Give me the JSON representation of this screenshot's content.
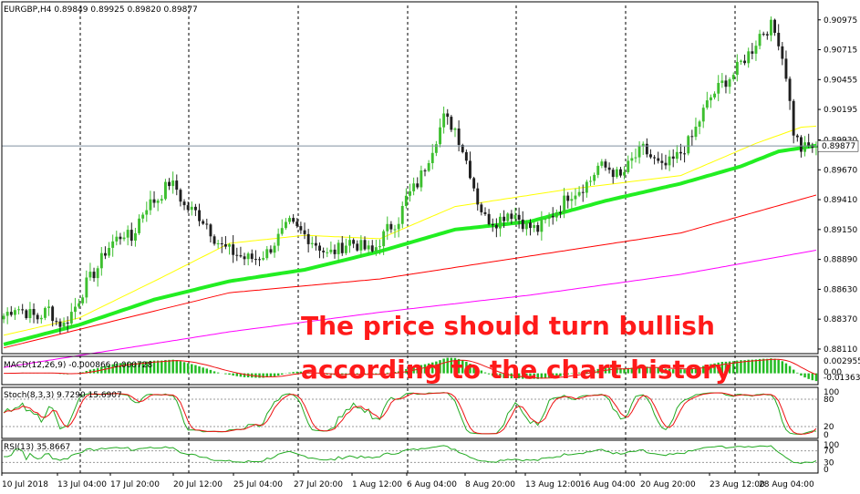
{
  "chart_data": {
    "type": "candlestick",
    "symbol_header": "EURGBP,H4  0.89849 0.89925 0.89820 0.89877",
    "last_price_label": "0.89877",
    "price_axis_ticks": [
      "0.90975",
      "0.90715",
      "0.90455",
      "0.90195",
      "0.89930",
      "0.89670",
      "0.89410",
      "0.89150",
      "0.88890",
      "0.88630",
      "0.88370",
      "0.88110"
    ],
    "price_range": [
      0.8807,
      0.911
    ],
    "last_price": 0.89877,
    "x_labels": [
      "10 Jul 2018",
      "13 Jul 04:00",
      "17 Jul 20:00",
      "20 Jul 12:00",
      "25 Jul 04:00",
      "27 Jul 20:00",
      "1 Aug 12:00",
      "6 Aug 04:00",
      "8 Aug 20:00",
      "13 Aug 12:00",
      "16 Aug 04:00",
      "20 Aug 20:00",
      "23 Aug 12:00",
      "28 Aug 04:00"
    ],
    "close_path": [
      [
        0,
        0.884
      ],
      [
        3,
        0.8848
      ],
      [
        6,
        0.8843
      ],
      [
        9,
        0.8838
      ],
      [
        12,
        0.8846
      ],
      [
        14,
        0.8835
      ],
      [
        16,
        0.8832
      ],
      [
        19,
        0.8848
      ],
      [
        22,
        0.8868
      ],
      [
        25,
        0.8882
      ],
      [
        27,
        0.8896
      ],
      [
        29,
        0.8904
      ],
      [
        32,
        0.8912
      ],
      [
        34,
        0.8906
      ],
      [
        36,
        0.8924
      ],
      [
        38,
        0.8936
      ],
      [
        41,
        0.8942
      ],
      [
        44,
        0.8956
      ],
      [
        46,
        0.895
      ],
      [
        48,
        0.8935
      ],
      [
        51,
        0.893
      ],
      [
        54,
        0.892
      ],
      [
        56,
        0.8908
      ],
      [
        58,
        0.89
      ],
      [
        61,
        0.8895
      ],
      [
        64,
        0.889
      ],
      [
        67,
        0.889
      ],
      [
        70,
        0.8895
      ],
      [
        73,
        0.8908
      ],
      [
        76,
        0.892
      ],
      [
        78,
        0.8915
      ],
      [
        81,
        0.8908
      ],
      [
        84,
        0.89
      ],
      [
        86,
        0.8893
      ],
      [
        89,
        0.8898
      ],
      [
        92,
        0.8905
      ],
      [
        95,
        0.89
      ],
      [
        98,
        0.8895
      ],
      [
        100,
        0.8905
      ],
      [
        102,
        0.8915
      ],
      [
        105,
        0.8924
      ],
      [
        107,
        0.8942
      ],
      [
        110,
        0.8955
      ],
      [
        112,
        0.897
      ],
      [
        115,
        0.8995
      ],
      [
        117,
        0.9012
      ],
      [
        120,
        0.9003
      ],
      [
        122,
        0.8985
      ],
      [
        124,
        0.8965
      ],
      [
        126,
        0.894
      ],
      [
        128,
        0.8925
      ],
      [
        131,
        0.8922
      ],
      [
        134,
        0.893
      ],
      [
        136,
        0.8928
      ],
      [
        139,
        0.8918
      ],
      [
        142,
        0.8915
      ],
      [
        145,
        0.8925
      ],
      [
        148,
        0.8935
      ],
      [
        150,
        0.8945
      ],
      [
        153,
        0.895
      ],
      [
        156,
        0.8958
      ],
      [
        158,
        0.897
      ],
      [
        161,
        0.8968
      ],
      [
        164,
        0.896
      ],
      [
        167,
        0.8975
      ],
      [
        170,
        0.8985
      ],
      [
        172,
        0.8978
      ],
      [
        175,
        0.8968
      ],
      [
        178,
        0.8975
      ],
      [
        180,
        0.8982
      ],
      [
        183,
        0.8995
      ],
      [
        186,
        0.9018
      ],
      [
        188,
        0.903
      ],
      [
        191,
        0.9042
      ],
      [
        194,
        0.905
      ],
      [
        196,
        0.906
      ],
      [
        199,
        0.9072
      ],
      [
        201,
        0.9085
      ],
      [
        204,
        0.9092
      ],
      [
        206,
        0.908
      ],
      [
        208,
        0.905
      ],
      [
        210,
        0.9
      ],
      [
        212,
        0.8985
      ],
      [
        214,
        0.8987
      ],
      [
        216,
        0.8988
      ]
    ],
    "n_bars": 217,
    "moving_averages": [
      {
        "name": "MA slow",
        "color": "#ff0000",
        "width": 1,
        "points": [
          [
            0,
            0.8812
          ],
          [
            60,
            0.886
          ],
          [
            100,
            0.8872
          ],
          [
            140,
            0.8892
          ],
          [
            180,
            0.8912
          ],
          [
            216,
            0.8945
          ]
        ]
      },
      {
        "name": "MA long",
        "color": "#ff00ff",
        "width": 1,
        "points": [
          [
            0,
            0.8795
          ],
          [
            60,
            0.8826
          ],
          [
            100,
            0.8843
          ],
          [
            140,
            0.8858
          ],
          [
            180,
            0.8876
          ],
          [
            216,
            0.8897
          ]
        ]
      },
      {
        "name": "MA fast",
        "color": "#ffff00",
        "width": 1,
        "points": [
          [
            0,
            0.8823
          ],
          [
            20,
            0.8838
          ],
          [
            40,
            0.887
          ],
          [
            60,
            0.8903
          ],
          [
            80,
            0.891
          ],
          [
            100,
            0.8907
          ],
          [
            120,
            0.8935
          ],
          [
            150,
            0.895
          ],
          [
            180,
            0.8962
          ],
          [
            200,
            0.899
          ],
          [
            212,
            0.9004
          ],
          [
            216,
            0.9005
          ]
        ]
      },
      {
        "name": "MA mid",
        "color": "#22ee22",
        "width": 4,
        "points": [
          [
            0,
            0.8815
          ],
          [
            20,
            0.8832
          ],
          [
            40,
            0.8854
          ],
          [
            60,
            0.887
          ],
          [
            80,
            0.888
          ],
          [
            100,
            0.8896
          ],
          [
            120,
            0.8915
          ],
          [
            140,
            0.8922
          ],
          [
            160,
            0.894
          ],
          [
            180,
            0.8955
          ],
          [
            196,
            0.897
          ],
          [
            206,
            0.8983
          ],
          [
            216,
            0.8988
          ]
        ]
      }
    ],
    "macd": {
      "label": "MACD(12,26,9) -0.000866 0.000728",
      "ticks": [
        "0.002955",
        "0.00",
        "-0.01363"
      ]
    },
    "stoch": {
      "label": "Stoch(8,3,3) 9.7290 15.6907",
      "ticks": [
        "100",
        "80",
        "20",
        "0"
      ],
      "last_k": 9.729,
      "last_d": 15.6907
    },
    "rsi": {
      "label": "RSI(13) 35.8667",
      "ticks": [
        "100",
        "70",
        "30",
        "0"
      ],
      "last": 35.8667
    },
    "annotation_lines": [
      "The price should turn bullish",
      "according to the chart history"
    ],
    "colors": {
      "bull": "#3dbf2f",
      "bear": "#1f1f1f",
      "grid": "#000000",
      "up_hist": "#22bb22",
      "stoch_k": "#22aa22",
      "stoch_d": "#ee1111",
      "rsi": "#22aa22",
      "annotation": "#ff1a1a"
    }
  }
}
